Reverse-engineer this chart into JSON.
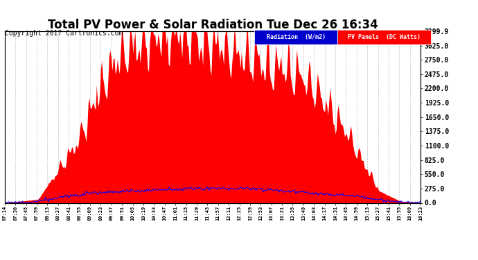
{
  "title": "Total PV Power & Solar Radiation Tue Dec 26 16:34",
  "copyright": "Copyright 2017 Cartronics.com",
  "ylabel_right_ticks": [
    0.0,
    275.0,
    550.0,
    825.0,
    1100.0,
    1375.0,
    1650.0,
    1925.0,
    2200.0,
    2475.0,
    2750.0,
    3025.0,
    3299.9
  ],
  "ymax": 3299.9,
  "ymin": 0.0,
  "background_color": "#ffffff",
  "plot_bg_color": "#ffffff",
  "grid_color": "#aaaaaa",
  "red_fill_color": "#ff0000",
  "blue_line_color": "#0000ff",
  "legend_radiation_bg": "#0000cc",
  "legend_pv_bg": "#ff0000",
  "legend_radiation_text": "Radiation  (W/m2)",
  "legend_pv_text": "PV Panels  (DC Watts)",
  "title_fontsize": 12,
  "copyright_fontsize": 7,
  "xtick_labels": [
    "07:14",
    "07:30",
    "07:45",
    "07:59",
    "08:13",
    "08:27",
    "08:41",
    "08:55",
    "09:09",
    "09:23",
    "09:37",
    "09:51",
    "10:05",
    "10:19",
    "10:33",
    "10:47",
    "11:01",
    "11:15",
    "11:29",
    "11:43",
    "11:57",
    "12:11",
    "12:25",
    "12:39",
    "12:53",
    "13:07",
    "13:21",
    "13:35",
    "13:49",
    "14:03",
    "14:17",
    "14:31",
    "14:45",
    "14:59",
    "15:13",
    "15:27",
    "15:41",
    "15:55",
    "16:09",
    "16:23"
  ],
  "num_points": 400
}
